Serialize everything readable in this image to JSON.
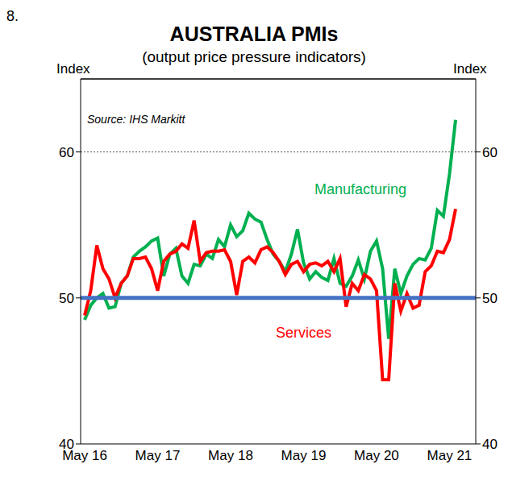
{
  "chart_data": {
    "type": "line",
    "figure_label": "8.",
    "title": "AUSTRALIA PMIs",
    "subtitle": "(output price pressure indicators)",
    "source": "Source: IHS Markitt",
    "y_label": "Index",
    "y2_label": "Index",
    "categories": [
      "May 16",
      null,
      null,
      null,
      null,
      null,
      null,
      null,
      null,
      null,
      null,
      null,
      "May 17",
      null,
      null,
      null,
      null,
      null,
      null,
      null,
      null,
      null,
      null,
      null,
      "May 18",
      null,
      null,
      null,
      null,
      null,
      null,
      null,
      null,
      null,
      null,
      null,
      "May 19",
      null,
      null,
      null,
      null,
      null,
      null,
      null,
      null,
      null,
      null,
      null,
      "May 20",
      null,
      null,
      null,
      null,
      null,
      null,
      null,
      null,
      null,
      null,
      null,
      "May 21",
      null
    ],
    "series": [
      {
        "name": "Manufacturing",
        "color": "#00b050",
        "values": [
          48.5,
          49.5,
          50,
          50.3,
          49.3,
          49.4,
          51,
          51.5,
          52.8,
          53.2,
          53.5,
          53.9,
          54.1,
          51.5,
          53,
          53.4,
          51.5,
          51,
          52.3,
          52.2,
          53,
          52.7,
          54,
          53.5,
          55,
          54.2,
          54.6,
          55.8,
          55.4,
          55.2,
          54,
          53,
          52.5,
          51.8,
          53,
          54.7,
          52.4,
          51.3,
          51.8,
          51.4,
          51.2,
          52.7,
          51,
          50.8,
          51.5,
          52.6,
          51.3,
          53.2,
          53.9,
          52,
          47.2,
          52,
          50.3,
          51.5,
          52.3,
          52.7,
          52.6,
          53.4,
          56,
          55.6,
          58.5,
          62.2
        ]
      },
      {
        "name": "Services",
        "color": "#ff0000",
        "values": [
          48.8,
          50.5,
          53.6,
          52,
          51.3,
          50,
          51,
          51.5,
          52.7,
          52.7,
          52.8,
          52,
          50.5,
          52.5,
          53,
          53.2,
          53.7,
          53.4,
          55.3,
          52.5,
          53.1,
          53.2,
          53.2,
          53.3,
          52.5,
          50.2,
          52.5,
          52.8,
          52.4,
          53.3,
          53.5,
          53.1,
          52.5,
          51.6,
          52.3,
          52.5,
          51.8,
          52.3,
          52.4,
          52.2,
          52.5,
          51.8,
          52.7,
          49.4,
          51,
          50.5,
          51.6,
          51.3,
          50.5,
          44.4,
          44.4,
          51,
          49.1,
          50.3,
          49.3,
          49.5,
          51.8,
          52.2,
          53.2,
          53.1,
          54,
          56.1
        ]
      }
    ],
    "ylim": [
      40,
      65
    ],
    "yticks": [
      40,
      50,
      60
    ],
    "y2lim": [
      40,
      65
    ],
    "y2ticks": [
      40,
      50,
      60
    ],
    "reference_lines": [
      {
        "value": 50,
        "color": "#4472c4"
      },
      {
        "value": 60,
        "line_style": "dashed",
        "color": "#555555"
      }
    ],
    "legend": false
  }
}
